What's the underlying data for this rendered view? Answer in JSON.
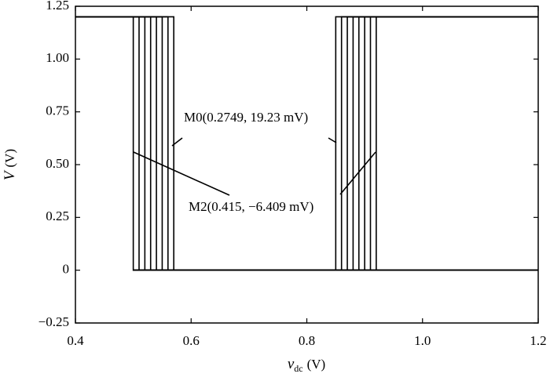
{
  "chart_data": {
    "type": "line",
    "xlabel": {
      "variable": "v",
      "subscript": "dc",
      "unit": "(V)"
    },
    "ylabel": {
      "variable": "V",
      "unit": "(V)"
    },
    "xlim": [
      0.4,
      1.2
    ],
    "xticks": [
      0.4,
      0.6,
      0.8,
      {
        "value": 1,
        "label": "1.0"
      },
      1.2
    ],
    "ylim": [
      -0.25,
      1.25
    ],
    "yticks": [
      {
        "value": -0.25,
        "label": "−0.25"
      },
      0,
      0.25,
      {
        "value": 0.5,
        "label": "0.50"
      },
      0.75,
      {
        "value": 1,
        "label": "1.00"
      },
      1.25
    ],
    "annotations": [
      "M0(0.2749, 19.23 mV)",
      "M2(0.415, −6.409 mV)"
    ],
    "series": [
      {
        "color": "#000000",
        "x": [
          0.4,
          0.5,
          0.5,
          1.2
        ],
        "values": [
          1.2,
          1.2,
          0,
          0
        ]
      },
      {
        "color": "#000000",
        "x": [
          0.4,
          0.51,
          0.51,
          1.2
        ],
        "values": [
          1.2,
          1.2,
          0,
          0
        ]
      },
      {
        "color": "#000000",
        "x": [
          0.4,
          0.52,
          0.52,
          1.2
        ],
        "values": [
          1.2,
          1.2,
          0,
          0
        ]
      },
      {
        "color": "#000000",
        "x": [
          0.4,
          0.53,
          0.53,
          1.2
        ],
        "values": [
          1.2,
          1.2,
          0,
          0
        ]
      },
      {
        "color": "#000000",
        "x": [
          0.4,
          0.54,
          0.54,
          1.2
        ],
        "values": [
          1.2,
          1.2,
          0,
          0
        ]
      },
      {
        "color": "#000000",
        "x": [
          0.4,
          0.55,
          0.55,
          1.2
        ],
        "values": [
          1.2,
          1.2,
          0,
          0
        ]
      },
      {
        "color": "#000000",
        "x": [
          0.4,
          0.56,
          0.56,
          1.2
        ],
        "values": [
          1.2,
          1.2,
          0,
          0
        ]
      },
      {
        "color": "#000000",
        "x": [
          0.4,
          0.57,
          0.57,
          1.2
        ],
        "values": [
          1.2,
          1.2,
          0,
          0
        ]
      },
      {
        "color": "#000000",
        "x": [
          0.5,
          0.85,
          0.85,
          1.2
        ],
        "values": [
          0,
          0,
          1.2,
          1.2
        ]
      },
      {
        "color": "#000000",
        "x": [
          0.5,
          0.86,
          0.86,
          1.2
        ],
        "values": [
          0,
          0,
          1.2,
          1.2
        ]
      },
      {
        "color": "#000000",
        "x": [
          0.5,
          0.87,
          0.87,
          1.2
        ],
        "values": [
          0,
          0,
          1.2,
          1.2
        ]
      },
      {
        "color": "#000000",
        "x": [
          0.5,
          0.88,
          0.88,
          1.2
        ],
        "values": [
          0,
          0,
          1.2,
          1.2
        ]
      },
      {
        "color": "#000000",
        "x": [
          0.5,
          0.89,
          0.89,
          1.2
        ],
        "values": [
          0,
          0,
          1.2,
          1.2
        ]
      },
      {
        "color": "#000000",
        "x": [
          0.5,
          0.9,
          0.9,
          1.2
        ],
        "values": [
          0,
          0,
          1.2,
          1.2
        ]
      },
      {
        "color": "#000000",
        "x": [
          0.5,
          0.91,
          0.91,
          1.2
        ],
        "values": [
          0,
          0,
          1.2,
          1.2
        ]
      },
      {
        "color": "#000000",
        "x": [
          0.5,
          0.92,
          0.92,
          1.2
        ],
        "values": [
          0,
          0,
          1.2,
          1.2
        ]
      }
    ]
  }
}
